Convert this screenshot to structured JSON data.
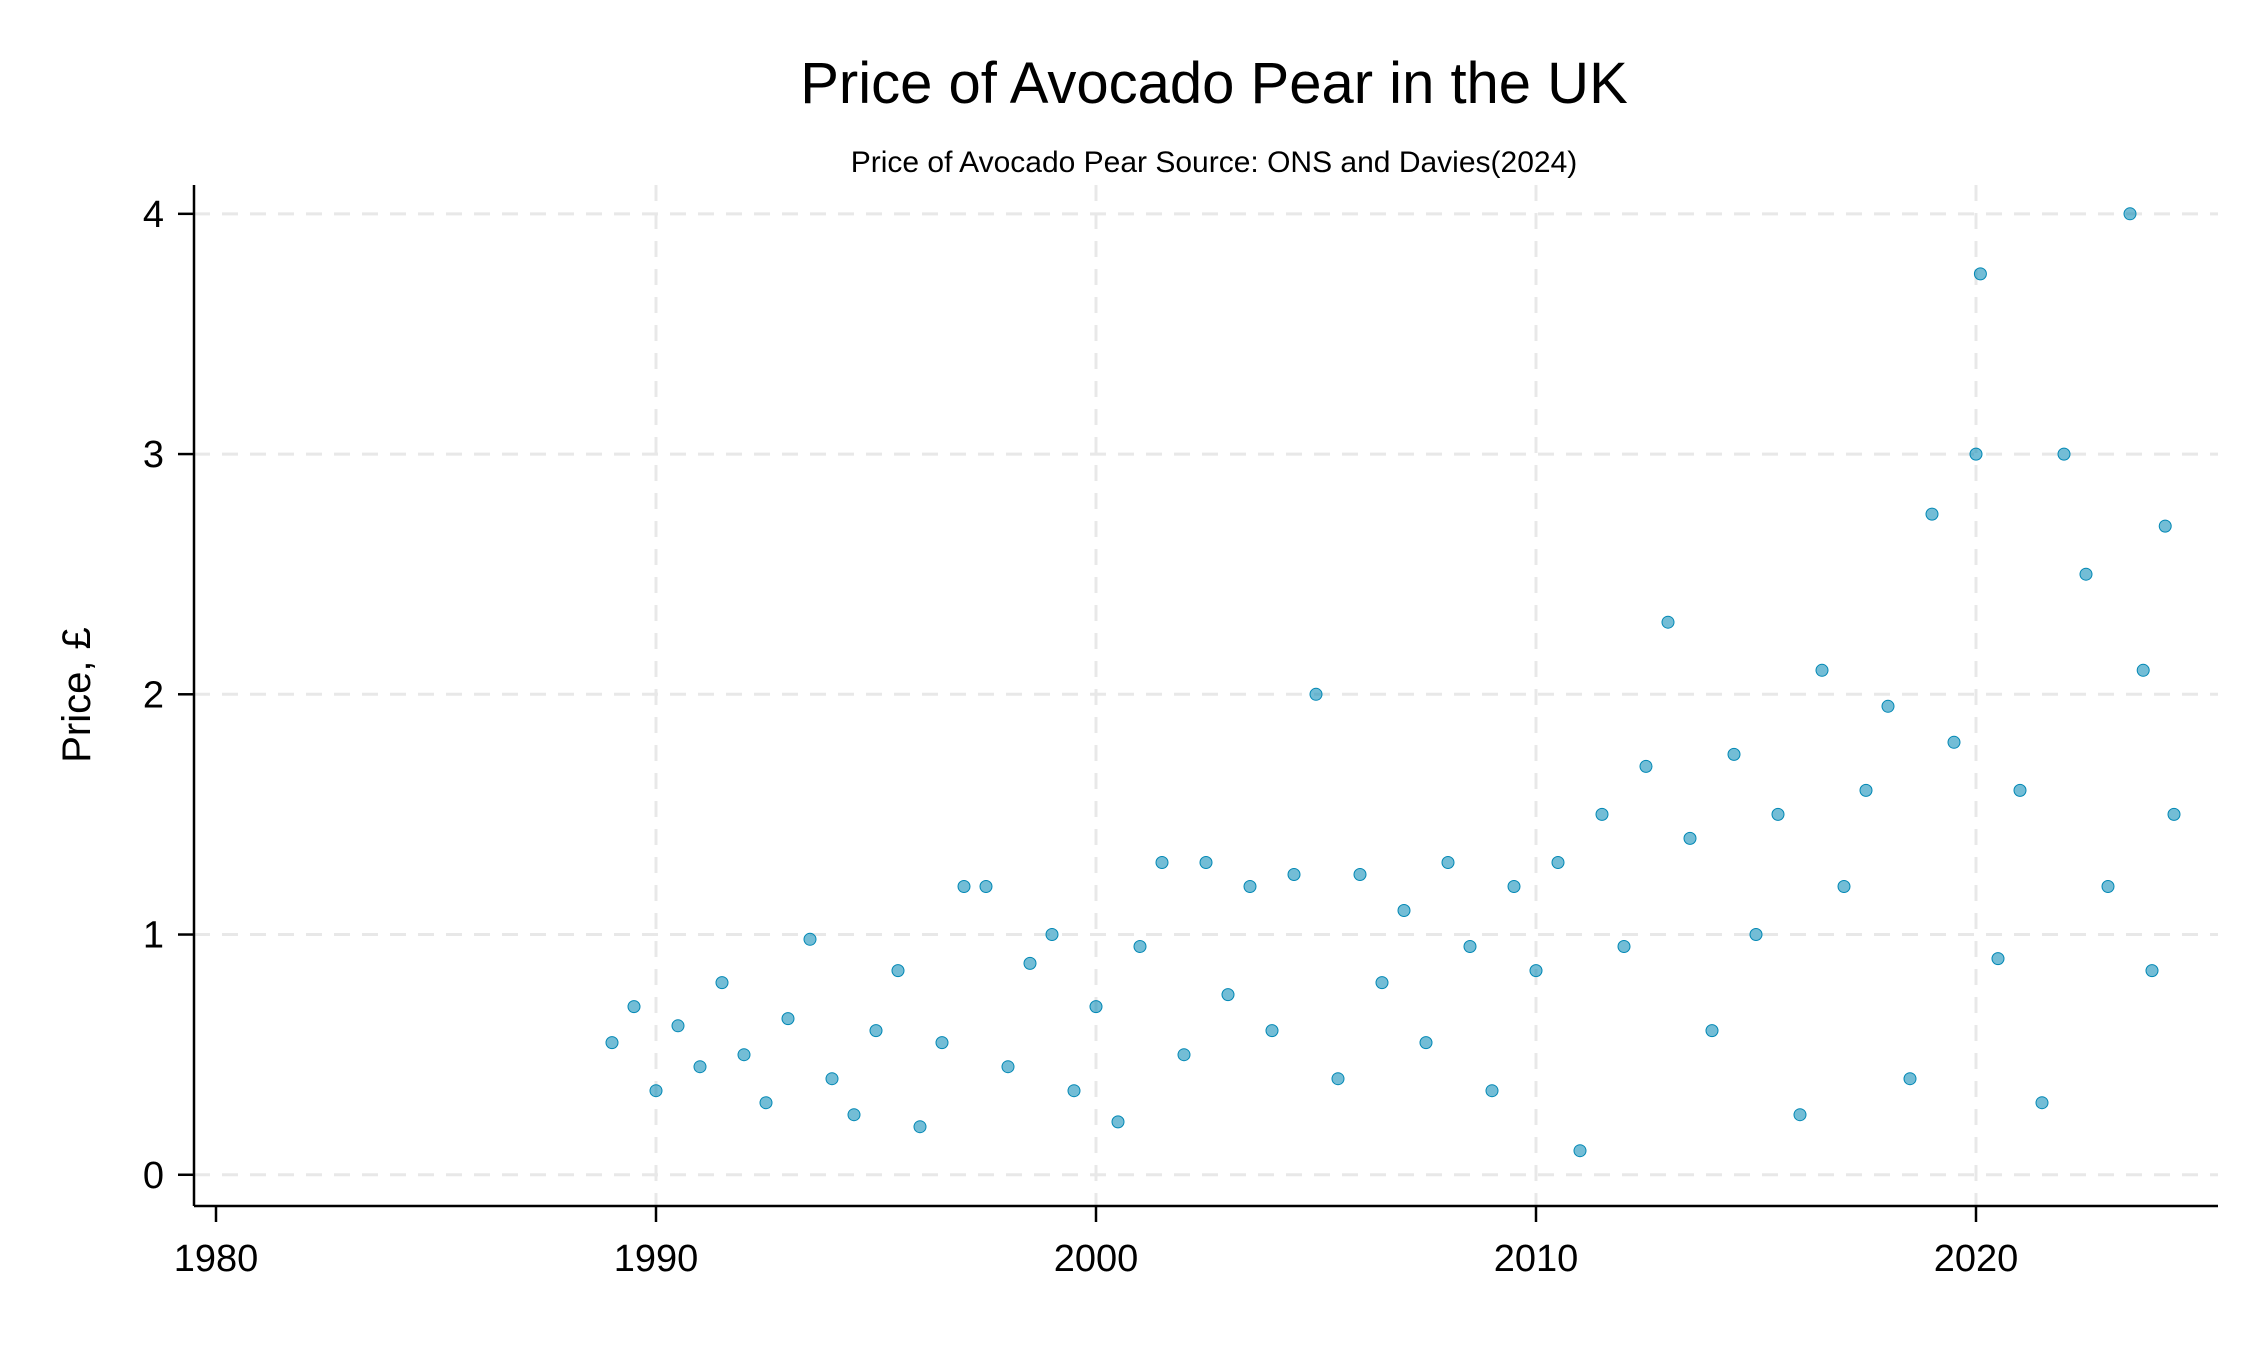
{
  "chart_data": {
    "type": "scatter",
    "title": "Price of Avocado Pear in the UK",
    "subtitle": "Price of Avocado Pear Source: ONS and Davies(2024)",
    "xlabel": "",
    "ylabel": "Price, £",
    "xlim": [
      1979.5,
      2025.5
    ],
    "ylim": [
      -0.13,
      4.12
    ],
    "xticks": [
      1980,
      1990,
      2000,
      2010,
      2020
    ],
    "yticks": [
      0,
      1,
      2,
      3,
      4
    ],
    "grid": true,
    "legend": "none",
    "marker_color": "#0087b4",
    "series": [
      {
        "points": [
          [
            1989.0,
            0.55
          ],
          [
            1989.5,
            0.7
          ],
          [
            1990.0,
            0.35
          ],
          [
            1990.5,
            0.62
          ],
          [
            1991.0,
            0.45
          ],
          [
            1991.5,
            0.8
          ],
          [
            1992.0,
            0.5
          ],
          [
            1992.5,
            0.3
          ],
          [
            1993.0,
            0.65
          ],
          [
            1993.5,
            0.98
          ],
          [
            1994.0,
            0.4
          ],
          [
            1994.5,
            0.25
          ],
          [
            1995.0,
            0.6
          ],
          [
            1995.5,
            0.85
          ],
          [
            1996.0,
            0.2
          ],
          [
            1996.5,
            0.55
          ],
          [
            1997.0,
            1.2
          ],
          [
            1997.5,
            1.2
          ],
          [
            1998.0,
            0.45
          ],
          [
            1998.5,
            0.88
          ],
          [
            1999.0,
            1.0
          ],
          [
            1999.5,
            0.35
          ],
          [
            2000.0,
            0.7
          ],
          [
            2000.5,
            0.22
          ],
          [
            2001.0,
            0.95
          ],
          [
            2001.5,
            1.3
          ],
          [
            2002.0,
            0.5
          ],
          [
            2002.5,
            1.3
          ],
          [
            2003.0,
            0.75
          ],
          [
            2003.5,
            1.2
          ],
          [
            2004.0,
            0.6
          ],
          [
            2004.5,
            1.25
          ],
          [
            2005.0,
            2.0
          ],
          [
            2005.5,
            0.4
          ],
          [
            2006.0,
            1.25
          ],
          [
            2006.5,
            0.8
          ],
          [
            2007.0,
            1.1
          ],
          [
            2007.5,
            0.55
          ],
          [
            2008.0,
            1.3
          ],
          [
            2008.5,
            0.95
          ],
          [
            2009.0,
            0.35
          ],
          [
            2009.5,
            1.2
          ],
          [
            2010.0,
            0.85
          ],
          [
            2010.5,
            1.3
          ],
          [
            2011.0,
            0.1
          ],
          [
            2011.5,
            1.5
          ],
          [
            2012.0,
            0.95
          ],
          [
            2012.5,
            1.7
          ],
          [
            2013.0,
            2.3
          ],
          [
            2013.5,
            1.4
          ],
          [
            2014.0,
            0.6
          ],
          [
            2014.5,
            1.75
          ],
          [
            2015.0,
            1.0
          ],
          [
            2015.5,
            1.5
          ],
          [
            2016.0,
            0.25
          ],
          [
            2016.5,
            2.1
          ],
          [
            2017.0,
            1.2
          ],
          [
            2017.5,
            1.6
          ],
          [
            2018.0,
            1.95
          ],
          [
            2018.5,
            0.4
          ],
          [
            2019.0,
            2.75
          ],
          [
            2019.5,
            1.8
          ],
          [
            2020.0,
            3.0
          ],
          [
            2020.1,
            3.75
          ],
          [
            2020.5,
            0.9
          ],
          [
            2021.0,
            1.6
          ],
          [
            2021.5,
            0.3
          ],
          [
            2022.0,
            3.0
          ],
          [
            2022.5,
            2.5
          ],
          [
            2023.0,
            1.2
          ],
          [
            2023.5,
            4.0
          ],
          [
            2023.8,
            2.1
          ],
          [
            2024.0,
            0.85
          ],
          [
            2024.3,
            2.7
          ],
          [
            2024.5,
            1.5
          ]
        ]
      }
    ]
  }
}
